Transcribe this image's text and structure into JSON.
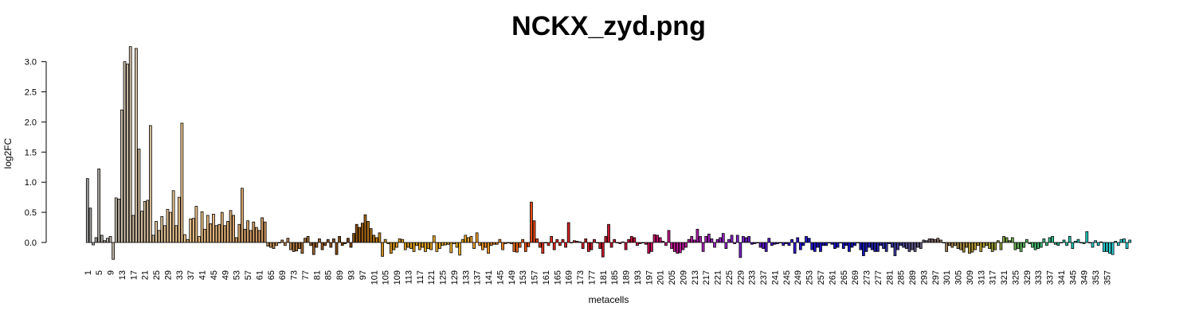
{
  "chart_data": {
    "type": "bar",
    "title": "NCKX_zyd.png",
    "xlabel": "metacells",
    "ylabel": "log2FC",
    "ylim": [
      -0.35,
      3.3
    ],
    "yticks": [
      0.0,
      0.5,
      1.0,
      1.5,
      2.0,
      2.5,
      3.0
    ],
    "ytick_labels": [
      "0.0",
      "0.5",
      "1.0",
      "1.5",
      "2.0",
      "2.5",
      "3.0"
    ],
    "n_metacells": 358,
    "xtick_labels": [
      "1",
      "5",
      "9",
      "13",
      "17",
      "21",
      "25",
      "29",
      "33",
      "37",
      "41",
      "45",
      "49",
      "53",
      "57",
      "61",
      "65",
      "69",
      "73",
      "77",
      "81",
      "85",
      "89",
      "93",
      "97",
      "101",
      "105",
      "109",
      "113",
      "117",
      "121",
      "125",
      "129",
      "133",
      "137",
      "141",
      "145",
      "149",
      "153",
      "157",
      "161",
      "165",
      "169",
      "173",
      "177",
      "181",
      "185",
      "189",
      "193",
      "197",
      "201",
      "205",
      "209",
      "213",
      "217",
      "221",
      "225",
      "229",
      "233",
      "237",
      "241",
      "245",
      "249",
      "253",
      "257",
      "261",
      "265",
      "269",
      "273",
      "277",
      "281",
      "285",
      "289",
      "293",
      "297",
      "301",
      "305",
      "309",
      "313",
      "317",
      "321",
      "325",
      "329",
      "333",
      "337",
      "341",
      "345",
      "349",
      "353",
      "357"
    ],
    "values": [
      1.06,
      0.57,
      -0.04,
      0.08,
      1.22,
      0.12,
      0.03,
      0.07,
      0.1,
      -0.28,
      0.74,
      0.72,
      2.2,
      3.0,
      2.96,
      3.25,
      0.45,
      3.22,
      1.55,
      0.52,
      0.68,
      0.7,
      1.94,
      0.12,
      0.35,
      0.2,
      0.43,
      0.28,
      0.55,
      0.5,
      0.86,
      0.28,
      0.75,
      1.98,
      0.13,
      0.05,
      0.39,
      0.4,
      0.6,
      0.1,
      0.51,
      0.22,
      0.45,
      0.31,
      0.47,
      0.28,
      0.3,
      0.5,
      0.28,
      0.35,
      0.53,
      0.45,
      0.08,
      0.3,
      0.9,
      0.22,
      0.36,
      0.2,
      0.34,
      0.25,
      0.2,
      0.41,
      0.34,
      -0.06,
      -0.08,
      -0.1,
      -0.05,
      0.0,
      0.04,
      -0.05,
      0.07,
      -0.12,
      -0.15,
      -0.14,
      -0.1,
      -0.18,
      0.07,
      0.1,
      -0.05,
      -0.2,
      -0.08,
      0.06,
      -0.12,
      -0.05,
      0.05,
      -0.08,
      0.06,
      -0.2,
      0.1,
      -0.05,
      -0.02,
      0.07,
      -0.08,
      0.15,
      0.3,
      0.25,
      0.32,
      0.46,
      0.35,
      0.23,
      0.12,
      0.08,
      0.16,
      -0.23,
      0.05,
      -0.02,
      -0.18,
      -0.12,
      -0.08,
      0.06,
      0.05,
      -0.12,
      -0.08,
      -0.1,
      -0.15,
      -0.05,
      -0.12,
      -0.08,
      -0.15,
      -0.1,
      -0.12,
      0.11,
      -0.15,
      -0.1,
      -0.05,
      -0.04,
      -0.03,
      -0.17,
      -0.02,
      -0.08,
      -0.21,
      0.05,
      0.12,
      0.08,
      0.1,
      -0.1,
      0.16,
      -0.05,
      -0.12,
      -0.08,
      -0.18,
      -0.05,
      -0.03,
      -0.03,
      0.05,
      -0.12,
      -0.02,
      0.0,
      -0.02,
      -0.15,
      -0.16,
      -0.08,
      0.05,
      -0.15,
      -0.07,
      0.67,
      0.36,
      0.06,
      -0.08,
      -0.18,
      0.0,
      -0.05,
      0.1,
      -0.12,
      0.05,
      -0.05,
      0.05,
      -0.08,
      0.33,
      0.0,
      0.03,
      0.02,
      0.01,
      -0.1,
      0.06,
      -0.15,
      -0.12,
      0.05,
      0.0,
      -0.1,
      -0.24,
      0.1,
      0.3,
      -0.08,
      0.05,
      0.0,
      -0.02,
      0.01,
      -0.12,
      0.05,
      0.1,
      0.08,
      -0.05,
      -0.02,
      0.0,
      -0.03,
      -0.18,
      -0.15,
      0.13,
      0.12,
      0.08,
      0.02,
      -0.05,
      0.2,
      -0.1,
      -0.15,
      -0.18,
      -0.17,
      -0.12,
      -0.08,
      0.05,
      0.1,
      0.04,
      0.22,
      0.1,
      -0.15,
      0.1,
      0.14,
      0.06,
      -0.08,
      0.05,
      0.08,
      0.15,
      -0.1,
      0.05,
      0.12,
      -0.02,
      0.12,
      -0.25,
      0.1,
      0.08,
      0.1,
      -0.03,
      -0.02,
      0.0,
      -0.08,
      -0.1,
      -0.15,
      0.07,
      -0.05,
      -0.03,
      -0.02,
      0.0,
      -0.05,
      -0.02,
      -0.05,
      0.05,
      -0.18,
      0.08,
      -0.12,
      -0.05,
      0.1,
      0.07,
      -0.12,
      -0.15,
      -0.08,
      -0.15,
      -0.05,
      -0.05,
      0.0,
      -0.03,
      -0.1,
      -0.08,
      0.0,
      -0.1,
      -0.05,
      -0.15,
      -0.08,
      -0.05,
      0.0,
      -0.12,
      -0.22,
      -0.15,
      -0.08,
      -0.12,
      -0.15,
      -0.15,
      -0.05,
      -0.1,
      -0.15,
      -0.02,
      -0.08,
      -0.22,
      -0.12,
      -0.05,
      -0.08,
      -0.1,
      -0.15,
      -0.12,
      -0.15,
      -0.08,
      -0.1,
      0.04,
      0.03,
      0.06,
      0.06,
      0.05,
      0.07,
      0.04,
      0.0,
      -0.15,
      -0.05,
      -0.08,
      -0.05,
      -0.1,
      -0.12,
      -0.16,
      -0.08,
      -0.18,
      -0.16,
      -0.12,
      -0.05,
      -0.15,
      -0.08,
      -0.05,
      -0.1,
      -0.15,
      -0.12,
      0.03,
      -0.12,
      0.1,
      0.08,
      0.03,
      0.08,
      -0.12,
      -0.1,
      -0.15,
      -0.08,
      0.05,
      -0.02,
      -0.08,
      -0.12,
      -0.1,
      -0.08,
      0.06,
      -0.05,
      0.08,
      0.1,
      -0.03,
      -0.05,
      0.0,
      0.04,
      -0.05,
      0.1,
      -0.1,
      0.02,
      0.05,
      0.0,
      -0.02,
      0.18,
      0.0,
      -0.08,
      0.03,
      -0.05,
      0.01,
      -0.15,
      -0.15,
      -0.18,
      -0.2,
      0.02,
      -0.05,
      0.05,
      0.06,
      -0.1,
      0.04
    ],
    "color_stops": [
      {
        "at": 1,
        "color": "#9e9e9e"
      },
      {
        "at": 13,
        "color": "#c8bba7"
      },
      {
        "at": 37,
        "color": "#f0c58a"
      },
      {
        "at": 65,
        "color": "#c8915a"
      },
      {
        "at": 92,
        "color": "#7a3f0a"
      },
      {
        "at": 105,
        "color": "#d8941e"
      },
      {
        "at": 130,
        "color": "#f2b22a"
      },
      {
        "at": 148,
        "color": "#f07a1a"
      },
      {
        "at": 153,
        "color": "#f05a10"
      },
      {
        "at": 165,
        "color": "#e02020"
      },
      {
        "at": 180,
        "color": "#cc1a2a"
      },
      {
        "at": 195,
        "color": "#cc0a4a"
      },
      {
        "at": 207,
        "color": "#c21a9a"
      },
      {
        "at": 222,
        "color": "#9a22c8"
      },
      {
        "at": 237,
        "color": "#5a18d0"
      },
      {
        "at": 252,
        "color": "#1e16d8"
      },
      {
        "at": 270,
        "color": "#1010c0"
      },
      {
        "at": 283,
        "color": "#3a3aa0"
      },
      {
        "at": 292,
        "color": "#6a6080"
      },
      {
        "at": 300,
        "color": "#9a7a5a"
      },
      {
        "at": 312,
        "color": "#bca030"
      },
      {
        "at": 320,
        "color": "#8aa03a"
      },
      {
        "at": 330,
        "color": "#4ac26a"
      },
      {
        "at": 345,
        "color": "#20c4b0"
      },
      {
        "at": 358,
        "color": "#2ad4d8"
      }
    ]
  }
}
